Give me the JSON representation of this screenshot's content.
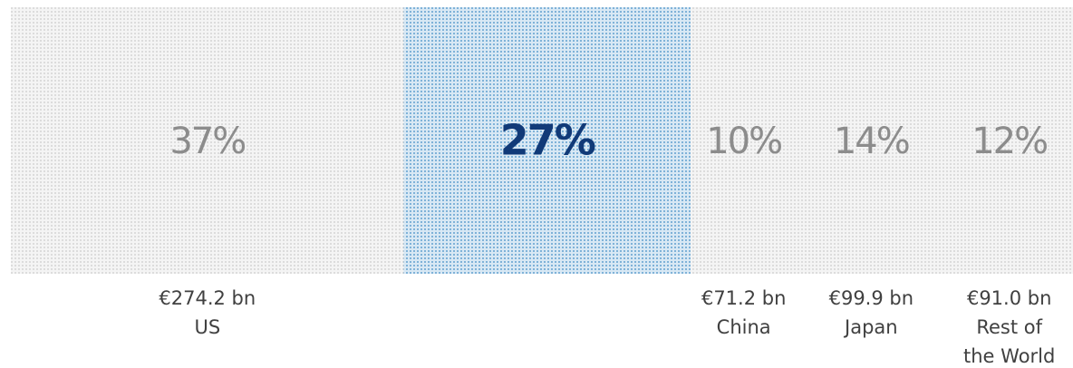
{
  "chart_data": {
    "type": "bar",
    "orientation": "stacked-horizontal-100%",
    "series": [
      {
        "region": "US",
        "region_lines": [
          "US"
        ],
        "share_pct": 37,
        "share_label": "37%",
        "value_label": "€274.2 bn",
        "highlighted": false
      },
      {
        "region": "",
        "region_lines": [],
        "share_pct": 27,
        "share_label": "27%",
        "value_label": "",
        "highlighted": true
      },
      {
        "region": "China",
        "region_lines": [
          "China"
        ],
        "share_pct": 10,
        "share_label": "10%",
        "value_label": "€71.2 bn",
        "highlighted": false
      },
      {
        "region": "Japan",
        "region_lines": [
          "Japan"
        ],
        "share_pct": 14,
        "share_label": "14%",
        "value_label": "€99.9 bn",
        "highlighted": false
      },
      {
        "region": "Rest of the World",
        "region_lines": [
          "Rest of",
          "the World"
        ],
        "share_pct": 12,
        "share_label": "12%",
        "value_label": "€91.0 bn",
        "highlighted": false
      }
    ],
    "colors": {
      "segment_pattern": "#dcdcdc",
      "highlight_pattern": "#7fb2d8",
      "label_text": "#8c8c8c",
      "highlight_text": "#113a78",
      "caption_text": "#404040"
    },
    "legend": "none",
    "grid": false
  }
}
